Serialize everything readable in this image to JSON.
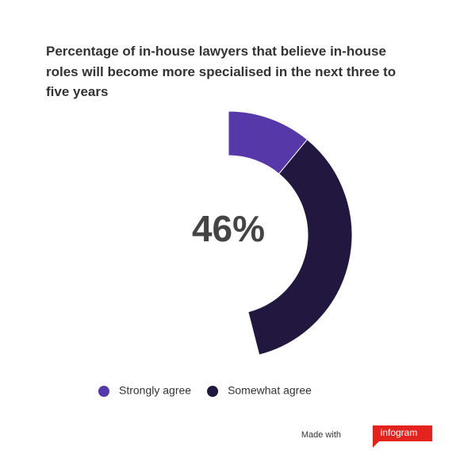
{
  "chart_data": {
    "type": "donut",
    "title": "Percentage of in-house lawyers that believe in-house roles will become more specialised in the next three to five years",
    "center_label": "46%",
    "categories": [
      "Strongly agree",
      "Somewhat agree"
    ],
    "values": [
      11,
      35
    ],
    "colors": [
      "#5738a8",
      "#21173f"
    ],
    "full_circle": 100
  },
  "footer": {
    "made_with": "Made with",
    "brand": "infogram"
  }
}
